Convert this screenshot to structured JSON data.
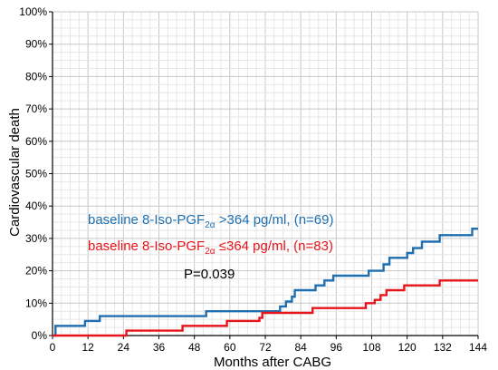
{
  "chart_data": {
    "type": "line",
    "step": true,
    "xlabel": "Months after CABG",
    "ylabel": "Cardiovascular death",
    "xlim": [
      0,
      144
    ],
    "ylim": [
      0,
      100
    ],
    "x_ticks": [
      0,
      12,
      24,
      36,
      48,
      60,
      72,
      84,
      96,
      108,
      120,
      132,
      144
    ],
    "y_ticks": [
      0,
      10,
      20,
      30,
      40,
      50,
      60,
      70,
      80,
      90,
      100
    ],
    "y_tick_labels": [
      "0%",
      "10%",
      "20%",
      "30%",
      "40%",
      "50%",
      "60%",
      "70%",
      "80%",
      "90%",
      "100%"
    ],
    "grid": true,
    "series": [
      {
        "name_prefix": "baseline 8-Iso-PGF",
        "name_subscript": "2α",
        "name_suffix": " >364 pg/ml, (n=69)",
        "color": "#1f6fb0",
        "points": [
          [
            0,
            0
          ],
          [
            1,
            0
          ],
          [
            1,
            3
          ],
          [
            11,
            3
          ],
          [
            11,
            4.5
          ],
          [
            16,
            4.5
          ],
          [
            16,
            6
          ],
          [
            52,
            6
          ],
          [
            52,
            7.5
          ],
          [
            77,
            7.5
          ],
          [
            77,
            9
          ],
          [
            79,
            9
          ],
          [
            79,
            10.5
          ],
          [
            81,
            10.5
          ],
          [
            81,
            12
          ],
          [
            82,
            12
          ],
          [
            82,
            14
          ],
          [
            89,
            14
          ],
          [
            89,
            15.5
          ],
          [
            92,
            15.5
          ],
          [
            92,
            17
          ],
          [
            95,
            17
          ],
          [
            95,
            18.5
          ],
          [
            107,
            18.5
          ],
          [
            107,
            20
          ],
          [
            112,
            20
          ],
          [
            112,
            22
          ],
          [
            114,
            22
          ],
          [
            114,
            24
          ],
          [
            120,
            24
          ],
          [
            120,
            25.5
          ],
          [
            122,
            25.5
          ],
          [
            122,
            27
          ],
          [
            125,
            27
          ],
          [
            125,
            29
          ],
          [
            131,
            29
          ],
          [
            131,
            31
          ],
          [
            142,
            31
          ],
          [
            142,
            33
          ],
          [
            144,
            33
          ]
        ]
      },
      {
        "name_prefix": "baseline 8-Iso-PGF",
        "name_subscript": "2α",
        "name_suffix": " ≤364 pg/ml, (n=83)",
        "color": "#e8141b",
        "points": [
          [
            0,
            0
          ],
          [
            25,
            0
          ],
          [
            25,
            1.5
          ],
          [
            44,
            1.5
          ],
          [
            44,
            3
          ],
          [
            59,
            3
          ],
          [
            59,
            4.5
          ],
          [
            70,
            4.5
          ],
          [
            70,
            5.5
          ],
          [
            71,
            5.5
          ],
          [
            71,
            7
          ],
          [
            88,
            7
          ],
          [
            88,
            8.5
          ],
          [
            106,
            8.5
          ],
          [
            106,
            10
          ],
          [
            109,
            10
          ],
          [
            109,
            11
          ],
          [
            111,
            11
          ],
          [
            111,
            12.5
          ],
          [
            113,
            12.5
          ],
          [
            113,
            14
          ],
          [
            119,
            14
          ],
          [
            119,
            15.5
          ],
          [
            131,
            15.5
          ],
          [
            131,
            17
          ],
          [
            144,
            17
          ]
        ]
      }
    ],
    "annotation": "P=0.039"
  }
}
